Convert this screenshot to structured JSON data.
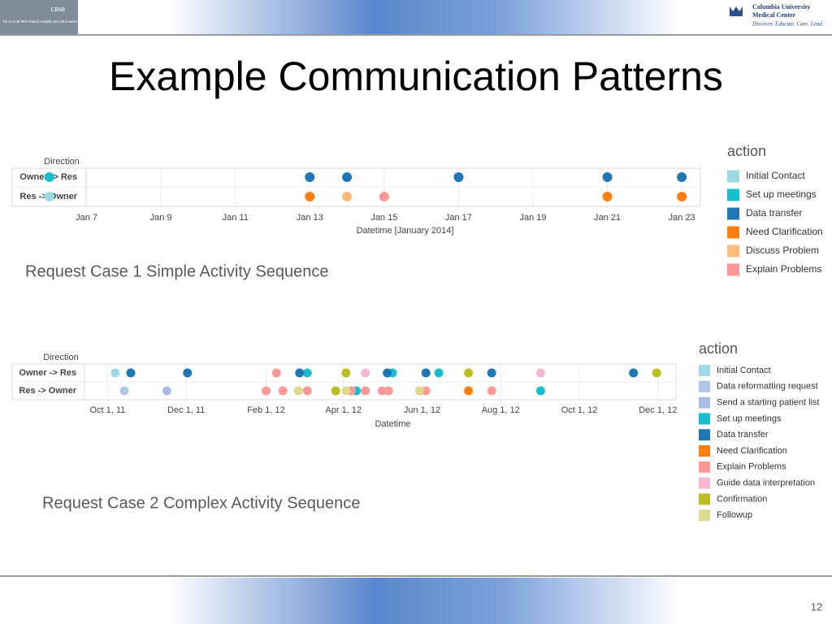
{
  "slide_title": "Example Communication Patterns",
  "page_number": "12",
  "header": {
    "left_logo": "CBMI",
    "left_event": "7th Annual Mid-Atlantic Healthcare Informatics Symposium",
    "right_org_line1": "Columbia University",
    "right_org_line2": "Medical Center",
    "right_tagline": "Discover. Educate. Care. Lead."
  },
  "chart_data": [
    {
      "type": "scatter",
      "caption": "Request Case 1 Simple Activity Sequence",
      "ylabel": "Direction",
      "xlabel": "Datetime [January 2014]",
      "legend_title": "action",
      "categories": [
        "Owner -> Res",
        "Res -> Owner"
      ],
      "xlim": [
        "2014-01-05",
        "2014-01-23T12:00"
      ],
      "xticks": [
        {
          "value": "2014-01-07",
          "label": "Jan 7"
        },
        {
          "value": "2014-01-09",
          "label": "Jan 9"
        },
        {
          "value": "2014-01-11",
          "label": "Jan 11"
        },
        {
          "value": "2014-01-13",
          "label": "Jan 13"
        },
        {
          "value": "2014-01-15",
          "label": "Jan 15"
        },
        {
          "value": "2014-01-17",
          "label": "Jan 17"
        },
        {
          "value": "2014-01-19",
          "label": "Jan 19"
        },
        {
          "value": "2014-01-21",
          "label": "Jan 21"
        },
        {
          "value": "2014-01-23",
          "label": "Jan 23"
        }
      ],
      "grid": true,
      "legend": "right",
      "series": [
        {
          "name": "Initial Contact",
          "color": "#9edae5",
          "x": [
            "2014-01-06"
          ],
          "values": [
            "Res -> Owner"
          ]
        },
        {
          "name": "Set up meetings",
          "color": "#17becf",
          "x": [
            "2014-01-06"
          ],
          "values": [
            "Owner -> Res"
          ]
        },
        {
          "name": "Data transfer",
          "color": "#1f77b4",
          "x": [
            "2014-01-13",
            "2014-01-14",
            "2014-01-17",
            "2014-01-21",
            "2014-01-23"
          ],
          "values": [
            "Owner -> Res",
            "Owner -> Res",
            "Owner -> Res",
            "Owner -> Res",
            "Owner -> Res"
          ]
        },
        {
          "name": "Need Clarification",
          "color": "#ff7f0e",
          "x": [
            "2014-01-13",
            "2014-01-21",
            "2014-01-23"
          ],
          "values": [
            "Res -> Owner",
            "Res -> Owner",
            "Res -> Owner"
          ]
        },
        {
          "name": "Discuss Problem",
          "color": "#ffbb78",
          "x": [
            "2014-01-14"
          ],
          "values": [
            "Res -> Owner"
          ]
        },
        {
          "name": "Explain Problems",
          "color": "#ff9896",
          "x": [
            "2014-01-15"
          ],
          "values": [
            "Res -> Owner"
          ]
        }
      ]
    },
    {
      "type": "scatter",
      "caption": "Request Case 2 Complex Activity Sequence",
      "ylabel": "Direction",
      "xlabel": "Datetime",
      "legend_title": "action",
      "categories": [
        "Owner -> Res",
        "Res -> Owner"
      ],
      "xlim": [
        "2011-07-19",
        "2012-12-15"
      ],
      "xticks": [
        {
          "value": "2011-10-01",
          "label": "Oct 1, 11"
        },
        {
          "value": "2011-12-01",
          "label": "Dec 1, 11"
        },
        {
          "value": "2012-02-01",
          "label": "Feb 1, 12"
        },
        {
          "value": "2012-04-01",
          "label": "Apr 1, 12"
        },
        {
          "value": "2012-06-01",
          "label": "Jun 1, 12"
        },
        {
          "value": "2012-08-01",
          "label": "Aug 1, 12"
        },
        {
          "value": "2012-10-01",
          "label": "Oct 1, 12"
        },
        {
          "value": "2012-12-01",
          "label": "Dec 1, 12"
        }
      ],
      "grid": true,
      "legend": "right",
      "series": [
        {
          "name": "Initial Contact",
          "color": "#9edae5",
          "x": [
            "2011-10-07"
          ],
          "values": [
            "Owner -> Res"
          ]
        },
        {
          "name": "Data reformatting request",
          "color": "#aec7e8",
          "x": [
            "2011-10-14"
          ],
          "values": [
            "Res -> Owner"
          ]
        },
        {
          "name": "Send a starting patient list",
          "color": "#a9bce6",
          "x": [
            "2011-11-16"
          ],
          "values": [
            "Res -> Owner"
          ]
        },
        {
          "name": "Set up meetings",
          "color": "#17becf",
          "x": [
            "2012-03-04",
            "2012-05-09",
            "2012-06-14",
            "2012-04-11",
            "2012-09-01"
          ],
          "values": [
            "Owner -> Res",
            "Owner -> Res",
            "Owner -> Res",
            "Res -> Owner",
            "Res -> Owner"
          ]
        },
        {
          "name": "Data transfer",
          "color": "#1f77b4",
          "x": [
            "2011-10-19",
            "2011-12-02",
            "2012-02-27",
            "2012-05-05",
            "2012-06-04",
            "2012-07-25",
            "2012-11-12"
          ],
          "values": [
            "Owner -> Res",
            "Owner -> Res",
            "Owner -> Res",
            "Owner -> Res",
            "Owner -> Res",
            "Owner -> Res",
            "Owner -> Res"
          ]
        },
        {
          "name": "Need Clarification",
          "color": "#ff7f0e",
          "x": [
            "2012-07-07"
          ],
          "values": [
            "Res -> Owner"
          ]
        },
        {
          "name": "Explain Problems",
          "color": "#ff9896",
          "x": [
            "2012-02-09",
            "2012-02-01",
            "2012-02-14",
            "2012-03-04",
            "2012-04-07",
            "2012-04-18",
            "2012-05-01",
            "2012-05-06",
            "2012-06-04",
            "2012-07-25"
          ],
          "values": [
            "Owner -> Res",
            "Res -> Owner",
            "Res -> Owner",
            "Res -> Owner",
            "Res -> Owner",
            "Res -> Owner",
            "Res -> Owner",
            "Res -> Owner",
            "Res -> Owner",
            "Res -> Owner"
          ]
        },
        {
          "name": "Guide data interpretation",
          "color": "#f7b6d2",
          "x": [
            "2012-04-18",
            "2012-09-01"
          ],
          "values": [
            "Owner -> Res",
            "Owner -> Res"
          ]
        },
        {
          "name": "Confirmation",
          "color": "#bcbd22",
          "x": [
            "2012-04-03",
            "2012-07-07",
            "2012-11-30",
            "2012-03-26"
          ],
          "values": [
            "Owner -> Res",
            "Owner -> Res",
            "Owner -> Res",
            "Res -> Owner"
          ]
        },
        {
          "name": "Followup",
          "color": "#dbdb8d",
          "x": [
            "2012-02-26",
            "2012-04-03",
            "2012-05-30"
          ],
          "values": [
            "Res -> Owner",
            "Res -> Owner",
            "Res -> Owner"
          ]
        }
      ]
    }
  ]
}
